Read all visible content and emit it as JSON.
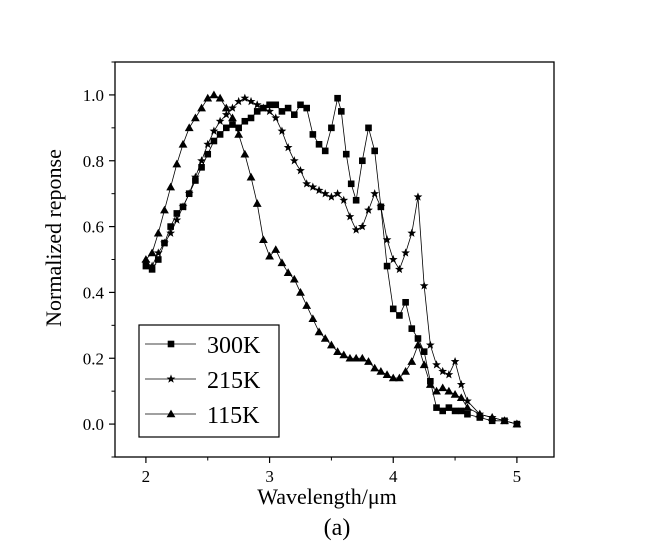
{
  "chart_data": {
    "type": "line",
    "title": "",
    "caption": "(a)",
    "xlabel": "Wavelength/μm",
    "ylabel": "Normalized reponse",
    "xlim": [
      1.75,
      5.3
    ],
    "ylim": [
      -0.1,
      1.1
    ],
    "xticks": [
      "2",
      "3",
      "4",
      "5"
    ],
    "yticks": [
      "0.0",
      "0.2",
      "0.4",
      "0.6",
      "0.8",
      "1.0"
    ],
    "grid": false,
    "legend_position": "bottom-left",
    "series": [
      {
        "name": "300K",
        "marker": "square",
        "x": [
          2.0,
          2.05,
          2.1,
          2.15,
          2.2,
          2.25,
          2.3,
          2.35,
          2.4,
          2.45,
          2.5,
          2.55,
          2.6,
          2.65,
          2.7,
          2.75,
          2.8,
          2.85,
          2.9,
          2.95,
          3.0,
          3.05,
          3.1,
          3.15,
          3.2,
          3.25,
          3.3,
          3.35,
          3.4,
          3.45,
          3.5,
          3.55,
          3.58,
          3.62,
          3.66,
          3.7,
          3.75,
          3.8,
          3.85,
          3.9,
          3.95,
          4.0,
          4.05,
          4.1,
          4.15,
          4.2,
          4.25,
          4.3,
          4.35,
          4.4,
          4.45,
          4.5,
          4.55,
          4.6,
          4.7,
          4.8,
          4.9,
          5.0
        ],
        "y": [
          0.48,
          0.47,
          0.5,
          0.55,
          0.6,
          0.64,
          0.66,
          0.7,
          0.74,
          0.78,
          0.82,
          0.86,
          0.88,
          0.9,
          0.91,
          0.9,
          0.92,
          0.93,
          0.95,
          0.96,
          0.97,
          0.97,
          0.95,
          0.96,
          0.94,
          0.97,
          0.96,
          0.88,
          0.85,
          0.83,
          0.9,
          0.99,
          0.95,
          0.82,
          0.73,
          0.68,
          0.8,
          0.9,
          0.83,
          0.66,
          0.48,
          0.35,
          0.33,
          0.37,
          0.29,
          0.26,
          0.22,
          0.13,
          0.05,
          0.04,
          0.05,
          0.04,
          0.04,
          0.03,
          0.02,
          0.01,
          0.01,
          0.0
        ]
      },
      {
        "name": "215K",
        "marker": "star",
        "x": [
          2.0,
          2.05,
          2.1,
          2.15,
          2.2,
          2.25,
          2.3,
          2.35,
          2.4,
          2.45,
          2.5,
          2.55,
          2.6,
          2.65,
          2.7,
          2.75,
          2.8,
          2.85,
          2.9,
          2.95,
          3.0,
          3.05,
          3.1,
          3.15,
          3.2,
          3.25,
          3.3,
          3.35,
          3.4,
          3.45,
          3.5,
          3.55,
          3.6,
          3.65,
          3.7,
          3.75,
          3.8,
          3.85,
          3.9,
          3.95,
          4.0,
          4.05,
          4.1,
          4.15,
          4.2,
          4.25,
          4.3,
          4.35,
          4.4,
          4.45,
          4.5,
          4.55,
          4.6,
          4.7,
          4.8,
          4.9,
          5.0
        ],
        "y": [
          0.49,
          0.48,
          0.52,
          0.55,
          0.58,
          0.62,
          0.66,
          0.7,
          0.75,
          0.8,
          0.85,
          0.89,
          0.92,
          0.94,
          0.96,
          0.98,
          0.99,
          0.98,
          0.97,
          0.96,
          0.95,
          0.93,
          0.89,
          0.84,
          0.8,
          0.77,
          0.73,
          0.72,
          0.71,
          0.7,
          0.69,
          0.7,
          0.68,
          0.63,
          0.59,
          0.6,
          0.65,
          0.7,
          0.66,
          0.56,
          0.5,
          0.47,
          0.52,
          0.58,
          0.69,
          0.42,
          0.24,
          0.18,
          0.16,
          0.15,
          0.19,
          0.12,
          0.07,
          0.03,
          0.02,
          0.01,
          0.0
        ]
      },
      {
        "name": "115K",
        "marker": "triangle",
        "x": [
          2.0,
          2.05,
          2.1,
          2.15,
          2.2,
          2.25,
          2.3,
          2.35,
          2.4,
          2.45,
          2.5,
          2.55,
          2.6,
          2.65,
          2.7,
          2.75,
          2.8,
          2.85,
          2.9,
          2.95,
          3.0,
          3.05,
          3.1,
          3.15,
          3.2,
          3.25,
          3.3,
          3.35,
          3.4,
          3.45,
          3.5,
          3.55,
          3.6,
          3.65,
          3.7,
          3.75,
          3.8,
          3.85,
          3.9,
          3.95,
          4.0,
          4.05,
          4.1,
          4.15,
          4.2,
          4.25,
          4.3,
          4.35,
          4.4,
          4.45,
          4.5,
          4.55,
          4.6,
          4.7,
          4.8,
          4.9,
          5.0
        ],
        "y": [
          0.5,
          0.52,
          0.58,
          0.65,
          0.72,
          0.79,
          0.85,
          0.9,
          0.93,
          0.96,
          0.99,
          1.0,
          0.99,
          0.96,
          0.93,
          0.88,
          0.82,
          0.75,
          0.67,
          0.56,
          0.51,
          0.53,
          0.49,
          0.46,
          0.44,
          0.4,
          0.36,
          0.32,
          0.28,
          0.26,
          0.24,
          0.22,
          0.21,
          0.2,
          0.2,
          0.2,
          0.19,
          0.17,
          0.16,
          0.15,
          0.14,
          0.14,
          0.16,
          0.19,
          0.24,
          0.18,
          0.12,
          0.1,
          0.11,
          0.1,
          0.09,
          0.08,
          0.05,
          0.03,
          0.02,
          0.01,
          0.0
        ]
      }
    ]
  }
}
